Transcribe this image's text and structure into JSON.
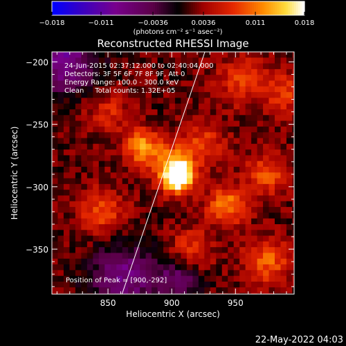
{
  "chart_data": {
    "type": "heatmap",
    "title": "Reconstructed RHESSI Image",
    "xlabel": "Heliocentric X (arcsec)",
    "ylabel": "Heliocentric Y (arcsec)",
    "xlim": [
      806,
      996
    ],
    "ylim": [
      -386,
      -192
    ],
    "x_ticks": [
      850,
      900,
      950
    ],
    "x_tick_labels": [
      "850",
      "900",
      "950"
    ],
    "y_ticks": [
      -200,
      -250,
      -300,
      -350
    ],
    "y_tick_labels": [
      "−200",
      "−250",
      "−300",
      "−350"
    ],
    "colorbar": {
      "min": -0.018,
      "max": 0.018,
      "ticks": [
        -0.018,
        -0.011,
        -0.0036,
        0.0036,
        0.011,
        0.018
      ],
      "tick_labels": [
        "−0.018",
        "−0.011",
        "−0.0036",
        "0.0036",
        "0.011",
        "0.018"
      ],
      "units_label": "(photons cm⁻² s⁻¹ asec⁻²)",
      "colormap": "rainbow-like: blue-purple-red-orange-yellow-white"
    },
    "annotations": [
      "24-Jun-2015 02:37:12.000 to 02:40:04.000",
      "Detectors: 3F 5F 6F 7F 8F 9F, Att 0",
      "Energy Range: 100.0 - 300.0 keV",
      "Clean     Total counts: 1.32E+05"
    ],
    "peak_label": "Position of Peak = [900,-292]",
    "peak": {
      "x": 900,
      "y": -292
    },
    "limb_line": [
      [
        861,
        -386
      ],
      [
        926,
        -192
      ]
    ],
    "sources": [
      {
        "x": 905,
        "y": -292,
        "amp": 0.0185,
        "sigma": 9
      },
      {
        "x": 877,
        "y": -268,
        "amp": 0.0105,
        "sigma": 10
      },
      {
        "x": 900,
        "y": -280,
        "amp": 0.007,
        "sigma": 12
      },
      {
        "x": 943,
        "y": -315,
        "amp": 0.0095,
        "sigma": 11
      },
      {
        "x": 975,
        "y": -290,
        "amp": 0.007,
        "sigma": 12
      },
      {
        "x": 975,
        "y": -360,
        "amp": 0.008,
        "sigma": 13
      },
      {
        "x": 925,
        "y": -265,
        "amp": 0.006,
        "sigma": 12
      },
      {
        "x": 845,
        "y": -320,
        "amp": 0.007,
        "sigma": 13
      },
      {
        "x": 915,
        "y": -350,
        "amp": 0.006,
        "sigma": 12
      },
      {
        "x": 955,
        "y": -215,
        "amp": 0.006,
        "sigma": 14
      },
      {
        "x": 990,
        "y": -225,
        "amp": 0.006,
        "sigma": 12
      },
      {
        "x": 850,
        "y": -240,
        "amp": 0.005,
        "sigma": 12
      },
      {
        "x": 815,
        "y": -200,
        "amp": -0.011,
        "sigma": 18
      },
      {
        "x": 862,
        "y": -372,
        "amp": -0.01,
        "sigma": 18
      },
      {
        "x": 905,
        "y": -375,
        "amp": -0.008,
        "sigma": 12
      }
    ]
  },
  "footer": {
    "date": "22-May-2022 04:03"
  }
}
